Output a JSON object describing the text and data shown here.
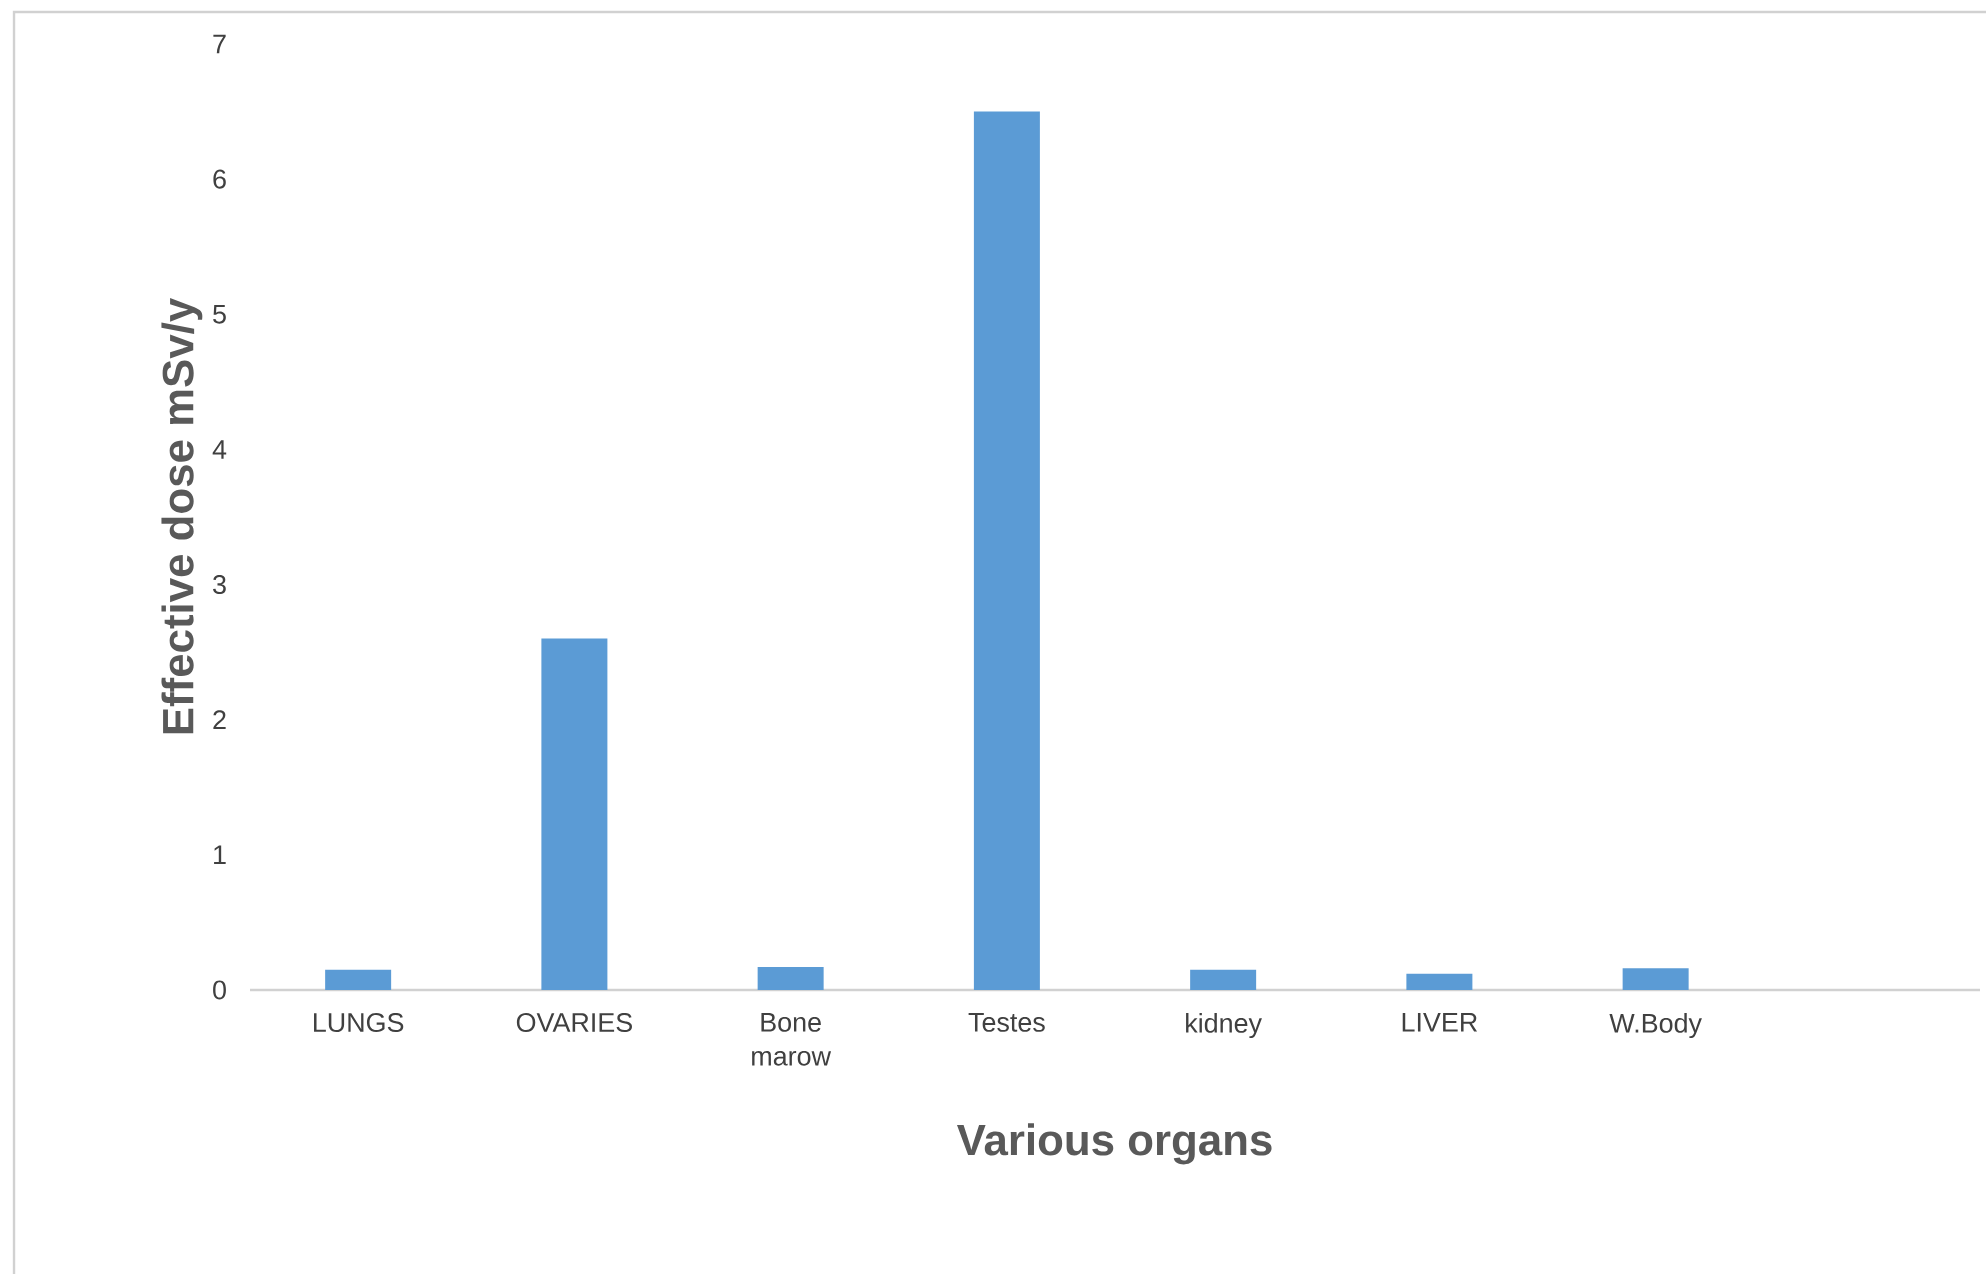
{
  "chart_data": {
    "type": "bar",
    "xlabel": "Various organs",
    "ylabel": "Effective dose mSv/y",
    "categories": [
      "LUNGS",
      "OVARIES",
      "Bone marow",
      "Testes",
      "kidney",
      "LIVER",
      "W.Body",
      null
    ],
    "values": [
      0.15,
      2.6,
      0.17,
      6.5,
      0.15,
      0.12,
      0.16,
      null
    ],
    "color": "#5b9bd5",
    "ylim": [
      0,
      7
    ],
    "yticks": [
      0,
      1,
      2,
      3,
      4,
      5,
      6,
      7
    ]
  }
}
